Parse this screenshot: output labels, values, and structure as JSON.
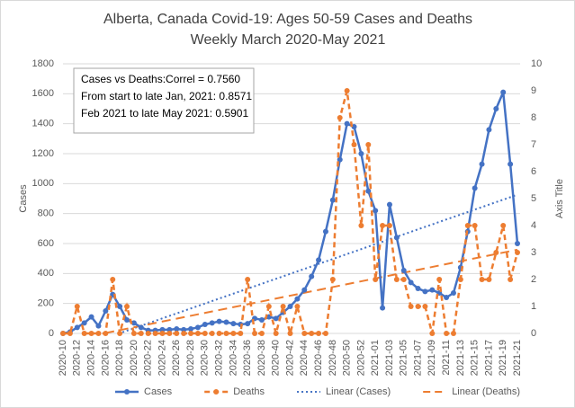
{
  "chart_data": {
    "type": "line",
    "title": [
      "Alberta, Canada Covid-19: Ages  50-59 Cases and Deaths",
      "Weekly March 2020-May 2021"
    ],
    "y_label": "Cases",
    "y2_label": "Axis Title",
    "annotation": [
      "Cases vs Deaths:Correl = 0.7560",
      "From start to late Jan, 2021: 0.8571",
      "Feb 2021 to late May 2021: 0.5901"
    ],
    "categories": [
      "2020-10",
      null,
      "2020-12",
      null,
      "2020-14",
      null,
      "2020-16",
      null,
      "2020-18",
      null,
      "2020-20",
      null,
      "2020-22",
      null,
      "2020-24",
      null,
      "2020-26",
      null,
      "2020-28",
      null,
      "2020-30",
      null,
      "2020-32",
      null,
      "2020-34",
      null,
      "2020-36",
      null,
      "2020-38",
      null,
      "2020-40",
      null,
      "2020-42",
      null,
      "2020-44",
      null,
      "2020-46",
      null,
      "2020-48",
      null,
      "2020-50",
      null,
      "2020-52",
      null,
      "2021-01",
      null,
      "2021-03",
      null,
      "2021-05",
      null,
      "2021-07",
      null,
      "2021-09",
      null,
      "2021-11",
      null,
      "2021-13",
      null,
      "2021-15",
      null,
      "2021-17",
      null,
      "2021-19",
      null,
      "2021-21"
    ],
    "series": [
      {
        "name": "Cases",
        "color": "#4472c4",
        "trendline": "Linear (Cases)",
        "values": [
          0,
          10,
          40,
          70,
          110,
          50,
          150,
          260,
          180,
          90,
          70,
          40,
          20,
          20,
          25,
          25,
          30,
          25,
          30,
          40,
          60,
          70,
          80,
          75,
          65,
          60,
          65,
          100,
          90,
          110,
          100,
          140,
          180,
          230,
          290,
          380,
          490,
          680,
          890,
          1160,
          1400,
          1380,
          1200,
          950,
          820,
          170,
          860,
          640,
          420,
          340,
          300,
          280,
          290,
          270,
          240,
          270,
          440,
          680,
          970,
          1130,
          1360,
          1500,
          1610,
          1130,
          600
        ]
      },
      {
        "name": "Deaths",
        "color": "#ed7d31",
        "axis": "y2",
        "trendline": "Linear (Deaths)",
        "values": [
          0,
          0,
          1,
          0,
          0,
          0,
          0,
          2,
          0,
          1,
          0,
          0,
          0,
          0,
          0,
          0,
          0,
          0,
          0,
          0,
          0,
          0,
          0,
          0,
          0,
          0,
          2,
          0,
          0,
          1,
          0,
          1,
          0,
          1,
          0,
          0,
          0,
          0,
          2,
          8,
          9,
          7,
          4,
          7,
          2,
          4,
          4,
          2,
          2,
          1,
          1,
          1,
          0,
          2,
          0,
          0,
          2,
          4,
          4,
          2,
          2,
          3,
          4,
          2,
          3
        ]
      }
    ],
    "ylim": [
      0,
      1800
    ],
    "yticks": [
      0,
      200,
      400,
      600,
      800,
      1000,
      1200,
      1400,
      1600,
      1800
    ],
    "y2lim": [
      0,
      10
    ],
    "y2ticks": [
      0,
      1,
      2,
      3,
      4,
      5,
      6,
      7,
      8,
      9,
      10
    ],
    "grid": true,
    "legend": "bottom"
  }
}
